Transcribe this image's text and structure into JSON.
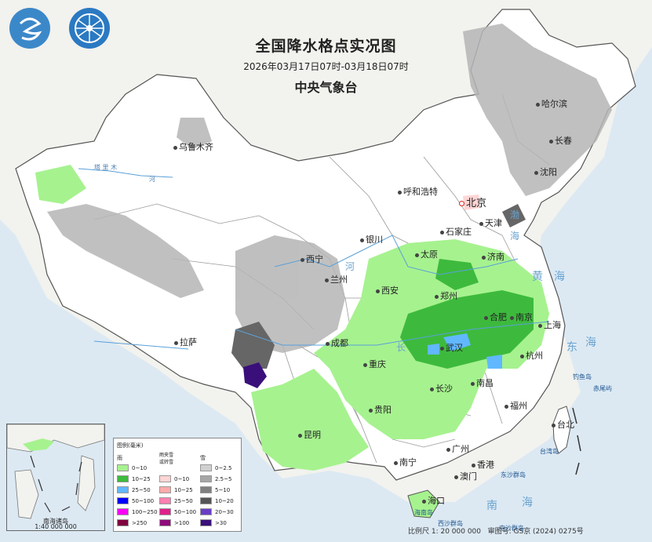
{
  "header": {
    "title": "全国降水格点实况图",
    "period": "2026年03月17日07时-03月18日07时",
    "issuer": "中央气象台"
  },
  "logos": [
    "cma-logo-icon",
    "nmc-globe-logo-icon"
  ],
  "cities": [
    {
      "name": "乌鲁木齐",
      "capital": false
    },
    {
      "name": "哈尔滨",
      "capital": false
    },
    {
      "name": "长春",
      "capital": false
    },
    {
      "name": "沈阳",
      "capital": false
    },
    {
      "name": "呼和浩特",
      "capital": false
    },
    {
      "name": "北京",
      "capital": true
    },
    {
      "name": "天津",
      "capital": false
    },
    {
      "name": "石家庄",
      "capital": false
    },
    {
      "name": "银川",
      "capital": false
    },
    {
      "name": "太原",
      "capital": false
    },
    {
      "name": "济南",
      "capital": false
    },
    {
      "name": "西宁",
      "capital": false
    },
    {
      "name": "兰州",
      "capital": false
    },
    {
      "name": "西安",
      "capital": false
    },
    {
      "name": "郑州",
      "capital": false
    },
    {
      "name": "合肥",
      "capital": false
    },
    {
      "name": "南京",
      "capital": false
    },
    {
      "name": "上海",
      "capital": false
    },
    {
      "name": "拉萨",
      "capital": false
    },
    {
      "name": "成都",
      "capital": false
    },
    {
      "name": "武汉",
      "capital": false
    },
    {
      "name": "重庆",
      "capital": false
    },
    {
      "name": "杭州",
      "capital": false
    },
    {
      "name": "长沙",
      "capital": false
    },
    {
      "name": "南昌",
      "capital": false
    },
    {
      "name": "贵阳",
      "capital": false
    },
    {
      "name": "福州",
      "capital": false
    },
    {
      "name": "台北",
      "capital": false
    },
    {
      "name": "昆明",
      "capital": false
    },
    {
      "name": "南宁",
      "capital": false
    },
    {
      "name": "广州",
      "capital": false
    },
    {
      "name": "香港",
      "capital": false
    },
    {
      "name": "澳门",
      "capital": false
    },
    {
      "name": "海口",
      "capital": false
    }
  ],
  "water_labels": {
    "bohai": "渤",
    "bohai2": "海",
    "yellow_sea": "黄",
    "yellow_sea2": "海",
    "east_sea": "东",
    "east_sea2": "海",
    "south_sea": "南",
    "south_sea2": "海",
    "yellow_river": "河",
    "yangtze": "长",
    "tarim": "河",
    "tarim_name": "塔 里 木"
  },
  "islands": {
    "taiwan": "台湾岛",
    "diaoyu": "钓鱼岛",
    "chiwei": "赤尾屿",
    "dongsha": "东沙群岛",
    "xisha": "西沙群岛",
    "zhongsha": "中沙群岛",
    "hainan": "海南岛"
  },
  "inset": {
    "label": "南海诸岛",
    "scale": "1:40 000 000"
  },
  "legend": {
    "title": "图例(毫米)",
    "rain_header": "雨",
    "mixed_header": "雨夹雪\n或转雪",
    "snow_header": "雪",
    "rain": [
      {
        "label": "0~10",
        "color": "#a6f28f"
      },
      {
        "label": "10~25",
        "color": "#3dba3d"
      },
      {
        "label": "25~50",
        "color": "#61b8ff"
      },
      {
        "label": "50~100",
        "color": "#0000ff"
      },
      {
        "label": "100~250",
        "color": "#fa00fa"
      },
      {
        "label": ">250",
        "color": "#800040"
      }
    ],
    "mixed": [
      {
        "label": "0~10",
        "color": "#ffd5d5"
      },
      {
        "label": "10~25",
        "color": "#ffaaaa"
      },
      {
        "label": "25~50",
        "color": "#ff80b0"
      },
      {
        "label": "50~100",
        "color": "#e0208a"
      },
      {
        "label": ">100",
        "color": "#8f0a7a"
      }
    ],
    "snow": [
      {
        "label": "0~2.5",
        "color": "#d0d0d0"
      },
      {
        "label": "2.5~5",
        "color": "#a6a6a6"
      },
      {
        "label": "5~10",
        "color": "#808080"
      },
      {
        "label": "10~20",
        "color": "#555555"
      },
      {
        "label": "20~30",
        "color": "#6a3dc6"
      },
      {
        "label": ">30",
        "color": "#3a0f7a"
      }
    ]
  },
  "footer": {
    "scale": "比例尺 1: 20 000 000",
    "approval": "审图号: GS京 (2024) 0275号"
  }
}
